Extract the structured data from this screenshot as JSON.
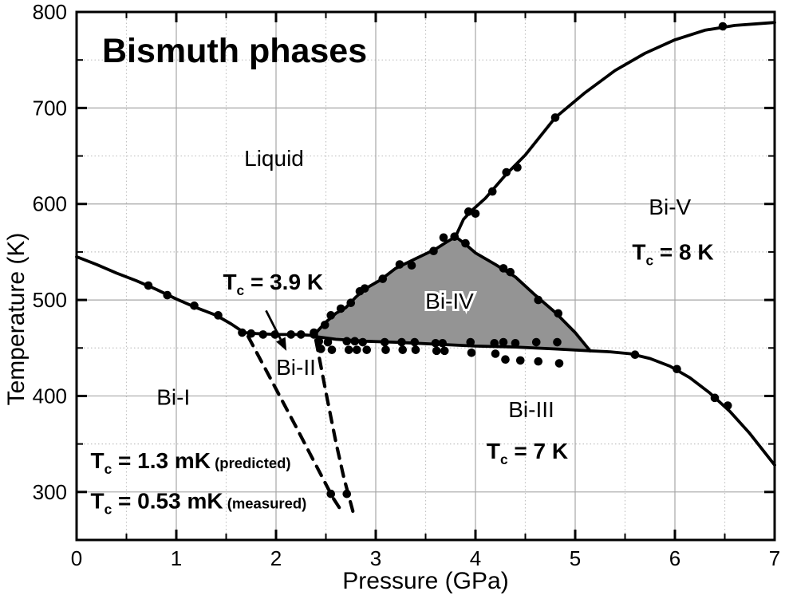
{
  "figure": {
    "title": "Bismuth phases",
    "xlabel": "Pressure (GPa)",
    "ylabel": "Temperature (K)",
    "xlim": [
      0,
      7
    ],
    "ylim": [
      250,
      800
    ],
    "x_major_ticks": [
      0,
      1,
      2,
      3,
      4,
      5,
      6,
      7
    ],
    "x_minor_ticks": [
      0.5,
      1.5,
      2.5,
      3.5,
      4.5,
      5.5,
      6.5
    ],
    "y_major_ticks": [
      300,
      400,
      500,
      600,
      700,
      800
    ],
    "y_minor_ticks": [
      350,
      450,
      550,
      650,
      750
    ],
    "grid": {
      "major_color": "#a6a6a6",
      "minor_color": "#c2c2c2"
    },
    "colors": {
      "line": "#000000",
      "region_fill": "#949494",
      "background": "#ffffff",
      "text": "#000000"
    }
  },
  "chart_data": {
    "type": "line",
    "xlabel": "Pressure (GPa)",
    "ylabel": "Temperature (K)",
    "xlim": [
      0,
      7
    ],
    "ylim": [
      250,
      800
    ],
    "grid": "major-solid-minor-dotted",
    "region": {
      "name": "Bi-IV region",
      "fill": "#949494",
      "points": [
        [
          2.38,
          462
        ],
        [
          2.6,
          459
        ],
        [
          2.9,
          457
        ],
        [
          3.2,
          456
        ],
        [
          3.6,
          454
        ],
        [
          4.0,
          452
        ],
        [
          4.4,
          451
        ],
        [
          4.8,
          449
        ],
        [
          5.15,
          447
        ],
        [
          5.0,
          466
        ],
        [
          4.8,
          487
        ],
        [
          4.6,
          505
        ],
        [
          4.4,
          524
        ],
        [
          4.2,
          537
        ],
        [
          4.0,
          549
        ],
        [
          3.9,
          558
        ],
        [
          3.8,
          566
        ],
        [
          3.72,
          561
        ],
        [
          3.6,
          553
        ],
        [
          3.4,
          543
        ],
        [
          3.2,
          533
        ],
        [
          3.05,
          521
        ],
        [
          2.9,
          512
        ],
        [
          2.8,
          503
        ],
        [
          2.7,
          492
        ],
        [
          2.6,
          486
        ],
        [
          2.5,
          477
        ],
        [
          2.42,
          468
        ]
      ]
    },
    "series": [
      {
        "name": "Bi-I / Liquid melting line",
        "dashed": false,
        "points": [
          [
            0,
            545
          ],
          [
            0.2,
            537
          ],
          [
            0.4,
            528
          ],
          [
            0.6,
            520
          ],
          [
            0.8,
            511
          ],
          [
            1.0,
            501
          ],
          [
            1.2,
            492
          ],
          [
            1.4,
            484
          ],
          [
            1.55,
            475
          ],
          [
            1.68,
            466
          ],
          [
            1.8,
            465
          ],
          [
            2.0,
            464
          ],
          [
            2.2,
            464
          ],
          [
            2.38,
            463
          ]
        ]
      },
      {
        "name": "Liquid / Bi-IV boundary",
        "dashed": false,
        "points": [
          [
            2.38,
            463
          ],
          [
            2.42,
            468
          ],
          [
            2.5,
            477
          ],
          [
            2.6,
            486
          ],
          [
            2.7,
            492
          ],
          [
            2.8,
            503
          ],
          [
            2.9,
            512
          ],
          [
            3.05,
            521
          ],
          [
            3.2,
            533
          ],
          [
            3.4,
            543
          ],
          [
            3.6,
            553
          ],
          [
            3.72,
            561
          ],
          [
            3.8,
            566
          ]
        ]
      },
      {
        "name": "Liquid / Bi-V melting line",
        "dashed": false,
        "points": [
          [
            3.8,
            566
          ],
          [
            3.88,
            584
          ],
          [
            3.95,
            592
          ],
          [
            4.1,
            606
          ],
          [
            4.3,
            630
          ],
          [
            4.5,
            651
          ],
          [
            4.8,
            690
          ],
          [
            5.1,
            716
          ],
          [
            5.4,
            739
          ],
          [
            5.7,
            757
          ],
          [
            6.0,
            771
          ],
          [
            6.3,
            781
          ],
          [
            6.6,
            786
          ],
          [
            7.0,
            789
          ]
        ]
      },
      {
        "name": "Bi-IV / Bi-V boundary",
        "dashed": false,
        "points": [
          [
            3.8,
            566
          ],
          [
            3.9,
            558
          ],
          [
            4.0,
            549
          ],
          [
            4.2,
            537
          ],
          [
            4.4,
            524
          ],
          [
            4.6,
            505
          ],
          [
            4.8,
            487
          ],
          [
            5.0,
            466
          ],
          [
            5.15,
            447
          ]
        ]
      },
      {
        "name": "Bi-III upper boundary",
        "dashed": false,
        "points": [
          [
            2.38,
            462
          ],
          [
            2.6,
            459
          ],
          [
            2.9,
            457
          ],
          [
            3.2,
            456
          ],
          [
            3.6,
            454
          ],
          [
            4.0,
            452
          ],
          [
            4.4,
            451
          ],
          [
            4.8,
            449
          ],
          [
            5.15,
            447
          ],
          [
            5.35,
            446
          ],
          [
            5.55,
            444
          ],
          [
            5.75,
            439
          ],
          [
            5.95,
            431
          ],
          [
            6.15,
            419
          ],
          [
            6.35,
            403
          ],
          [
            6.55,
            384
          ],
          [
            6.75,
            361
          ],
          [
            7.0,
            328
          ]
        ]
      },
      {
        "name": "Bi-II left boundary (extrapolated)",
        "dashed": true,
        "points": [
          [
            1.72,
            462
          ],
          [
            1.95,
            417
          ],
          [
            2.2,
            368
          ],
          [
            2.45,
            318
          ],
          [
            2.57,
            294
          ],
          [
            2.67,
            278
          ]
        ]
      },
      {
        "name": "Bi-II right boundary (extrapolated)",
        "dashed": true,
        "points": [
          [
            2.4,
            458
          ],
          [
            2.5,
            404
          ],
          [
            2.6,
            352
          ],
          [
            2.68,
            315
          ],
          [
            2.77,
            280
          ]
        ]
      }
    ],
    "scatter": {
      "name": "experimental points",
      "marker": "filled-circle",
      "points": [
        [
          0.72,
          515
        ],
        [
          0.91,
          505
        ],
        [
          1.18,
          494
        ],
        [
          1.42,
          484
        ],
        [
          1.66,
          466
        ],
        [
          1.75,
          465
        ],
        [
          1.87,
          464
        ],
        [
          1.99,
          464
        ],
        [
          2.15,
          464
        ],
        [
          2.25,
          464
        ],
        [
          2.38,
          464
        ],
        [
          2.38,
          466
        ],
        [
          2.49,
          474
        ],
        [
          2.55,
          484
        ],
        [
          2.65,
          491
        ],
        [
          2.75,
          497
        ],
        [
          2.84,
          509
        ],
        [
          2.89,
          512
        ],
        [
          3.07,
          522
        ],
        [
          3.24,
          537
        ],
        [
          3.36,
          536
        ],
        [
          3.58,
          551
        ],
        [
          3.68,
          565
        ],
        [
          3.79,
          566
        ],
        [
          3.93,
          592
        ],
        [
          4.0,
          590
        ],
        [
          4.17,
          613
        ],
        [
          4.31,
          633
        ],
        [
          4.42,
          638
        ],
        [
          4.8,
          690
        ],
        [
          6.48,
          785
        ],
        [
          3.9,
          559
        ],
        [
          4.28,
          533
        ],
        [
          4.35,
          529
        ],
        [
          4.63,
          500
        ],
        [
          4.83,
          486
        ],
        [
          2.43,
          457
        ],
        [
          2.52,
          456
        ],
        [
          2.71,
          457
        ],
        [
          2.79,
          457
        ],
        [
          2.87,
          456
        ],
        [
          3.09,
          456
        ],
        [
          3.26,
          456
        ],
        [
          3.39,
          456
        ],
        [
          3.6,
          455
        ],
        [
          3.67,
          455
        ],
        [
          3.95,
          456
        ],
        [
          4.19,
          455
        ],
        [
          4.28,
          456
        ],
        [
          4.4,
          455
        ],
        [
          4.61,
          456
        ],
        [
          4.82,
          456
        ],
        [
          2.45,
          449
        ],
        [
          2.56,
          448
        ],
        [
          2.73,
          448
        ],
        [
          2.81,
          448
        ],
        [
          2.91,
          448
        ],
        [
          3.1,
          448
        ],
        [
          3.27,
          448
        ],
        [
          3.4,
          448
        ],
        [
          3.61,
          447
        ],
        [
          3.69,
          447
        ],
        [
          3.96,
          445
        ],
        [
          4.2,
          444
        ],
        [
          4.3,
          438
        ],
        [
          4.45,
          437
        ],
        [
          4.63,
          436
        ],
        [
          4.84,
          434
        ],
        [
          5.6,
          443
        ],
        [
          6.02,
          428
        ],
        [
          6.4,
          398
        ],
        [
          6.53,
          390
        ],
        [
          2.55,
          298
        ],
        [
          2.71,
          298
        ]
      ]
    },
    "annotations": [
      {
        "id": "label-liquid",
        "kind": "plain",
        "x": 1.98,
        "y": 648,
        "text": "Liquid",
        "size": 28,
        "bold": false,
        "anchor": "middle",
        "halo": false
      },
      {
        "id": "label-bi1",
        "kind": "plain",
        "x": 0.97,
        "y": 399,
        "text": "Bi-I",
        "size": 28,
        "bold": false,
        "anchor": "middle",
        "halo": false
      },
      {
        "id": "label-bi2",
        "kind": "plain",
        "x": 2.2,
        "y": 430,
        "text": "Bi-II",
        "size": 28,
        "bold": false,
        "anchor": "middle",
        "halo": false
      },
      {
        "id": "label-bi3",
        "kind": "plain",
        "x": 4.56,
        "y": 386,
        "text": "Bi-III",
        "size": 28,
        "bold": false,
        "anchor": "middle",
        "halo": false
      },
      {
        "id": "label-bi4",
        "kind": "plain",
        "x": 3.74,
        "y": 499,
        "text": "Bi-IV",
        "size": 28,
        "bold": false,
        "anchor": "middle",
        "halo": true
      },
      {
        "id": "label-bi5",
        "kind": "plain",
        "x": 5.95,
        "y": 597,
        "text": "Bi-V",
        "size": 28,
        "bold": false,
        "anchor": "middle",
        "halo": false
      },
      {
        "id": "tc-bi2",
        "kind": "tc",
        "x": 1.97,
        "y": 519,
        "pre": "T",
        "sub": "c",
        "value": " = 3.9 K",
        "note": "",
        "size": 28,
        "anchor": "middle"
      },
      {
        "id": "tc-bi5",
        "kind": "tc",
        "x": 5.98,
        "y": 550,
        "pre": "T",
        "sub": "c",
        "value": " = 8 K",
        "note": "",
        "size": 28,
        "anchor": "middle"
      },
      {
        "id": "tc-bi3",
        "kind": "tc",
        "x": 4.52,
        "y": 343,
        "pre": "T",
        "sub": "c",
        "value": " = 7 K",
        "note": "",
        "size": 28,
        "anchor": "middle"
      },
      {
        "id": "tc-bi1-predicted",
        "kind": "tc",
        "x": 0.14,
        "y": 333,
        "pre": "T",
        "sub": "c",
        "value": " = 1.3 mK",
        "note": "(predicted)",
        "size": 28,
        "anchor": "start"
      },
      {
        "id": "tc-bi1-measured",
        "kind": "tc",
        "x": 0.14,
        "y": 291,
        "pre": "T",
        "sub": "c",
        "value": " = 0.53 mK",
        "note": "(measured)",
        "size": 28,
        "anchor": "start"
      }
    ],
    "arrow": {
      "name": "tc-3.9K-pointer",
      "from": [
        1.9,
        489
      ],
      "to": [
        2.105,
        447
      ]
    },
    "title": "Bismuth phases"
  }
}
